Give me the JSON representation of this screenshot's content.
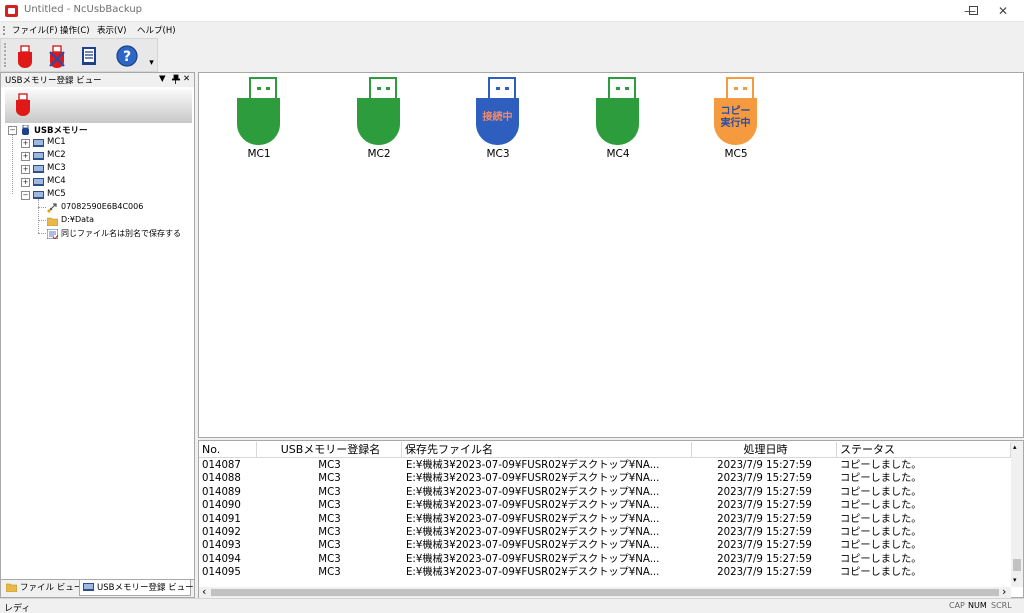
{
  "window": {
    "title": "Untitled - NcUsbBackup",
    "minimize": "—",
    "maximize": "☐",
    "close": "✕"
  },
  "menu": [
    {
      "label": "ファイル(F)"
    },
    {
      "label": "操作(C)"
    },
    {
      "label": "表示(V)"
    },
    {
      "label": "ヘルプ(H)"
    }
  ],
  "toolbar": {
    "buttons": [
      "usb-device-icon",
      "usb-delete-icon",
      "list-view-icon",
      "help-icon"
    ],
    "help_glyph": "?",
    "overflow_glyph": "▾"
  },
  "left_panel": {
    "title": "USBメモリー登録 ビュー",
    "controls": {
      "menu": "▼",
      "pin": "ᚚ",
      "close": "✕"
    },
    "tree": {
      "root": "USBメモリー",
      "items": [
        "MC1",
        "MC2",
        "MC3",
        "MC4",
        "MC5"
      ],
      "mc5_children": [
        "07082590E6B4C006",
        "D:¥Data",
        "同じファイル名は別名で保存する"
      ]
    },
    "tabs": [
      "ファイル ビュー",
      "USBメモリー登録 ビュー"
    ]
  },
  "devices": [
    {
      "label": "MC1",
      "status": "",
      "color": "#2d9c3d"
    },
    {
      "label": "MC2",
      "status": "",
      "color": "#2d9c3d"
    },
    {
      "label": "MC3",
      "status": "接続中",
      "color": "#2e5fbf",
      "text_color": "#f08a6a"
    },
    {
      "label": "MC4",
      "status": "",
      "color": "#2d9c3d"
    },
    {
      "label": "MC5",
      "status": "コピー\n実行中",
      "color": "#f59a3f",
      "text_color": "#2a4aa8"
    }
  ],
  "list": {
    "columns": [
      "No.",
      "USBメモリー登録名",
      "保存先ファイル名",
      "処理日時",
      "ステータス"
    ],
    "rows": [
      [
        "014087",
        "MC3",
        "E:¥機械3¥2023-07-09¥FUSR02¥デスクトップ¥NA...",
        "2023/7/9 15:27:59",
        "コピーしました。"
      ],
      [
        "014088",
        "MC3",
        "E:¥機械3¥2023-07-09¥FUSR02¥デスクトップ¥NA...",
        "2023/7/9 15:27:59",
        "コピーしました。"
      ],
      [
        "014089",
        "MC3",
        "E:¥機械3¥2023-07-09¥FUSR02¥デスクトップ¥NA...",
        "2023/7/9 15:27:59",
        "コピーしました。"
      ],
      [
        "014090",
        "MC3",
        "E:¥機械3¥2023-07-09¥FUSR02¥デスクトップ¥NA...",
        "2023/7/9 15:27:59",
        "コピーしました。"
      ],
      [
        "014091",
        "MC3",
        "E:¥機械3¥2023-07-09¥FUSR02¥デスクトップ¥NA...",
        "2023/7/9 15:27:59",
        "コピーしました。"
      ],
      [
        "014092",
        "MC3",
        "E:¥機械3¥2023-07-09¥FUSR02¥デスクトップ¥NA...",
        "2023/7/9 15:27:59",
        "コピーしました。"
      ],
      [
        "014093",
        "MC3",
        "E:¥機械3¥2023-07-09¥FUSR02¥デスクトップ¥NA...",
        "2023/7/9 15:27:59",
        "コピーしました。"
      ],
      [
        "014094",
        "MC3",
        "E:¥機械3¥2023-07-09¥FUSR02¥デスクトップ¥NA...",
        "2023/7/9 15:27:59",
        "コピーしました。"
      ],
      [
        "014095",
        "MC3",
        "E:¥機械3¥2023-07-09¥FUSR02¥デスクトップ¥NA...",
        "2023/7/9 15:27:59",
        "コピーしました。"
      ]
    ],
    "scroll_left": "‹",
    "scroll_right": "›"
  },
  "status_bar": {
    "text": "レディ",
    "cap": "CAP",
    "num": "NUM",
    "scrl": "SCRL"
  }
}
